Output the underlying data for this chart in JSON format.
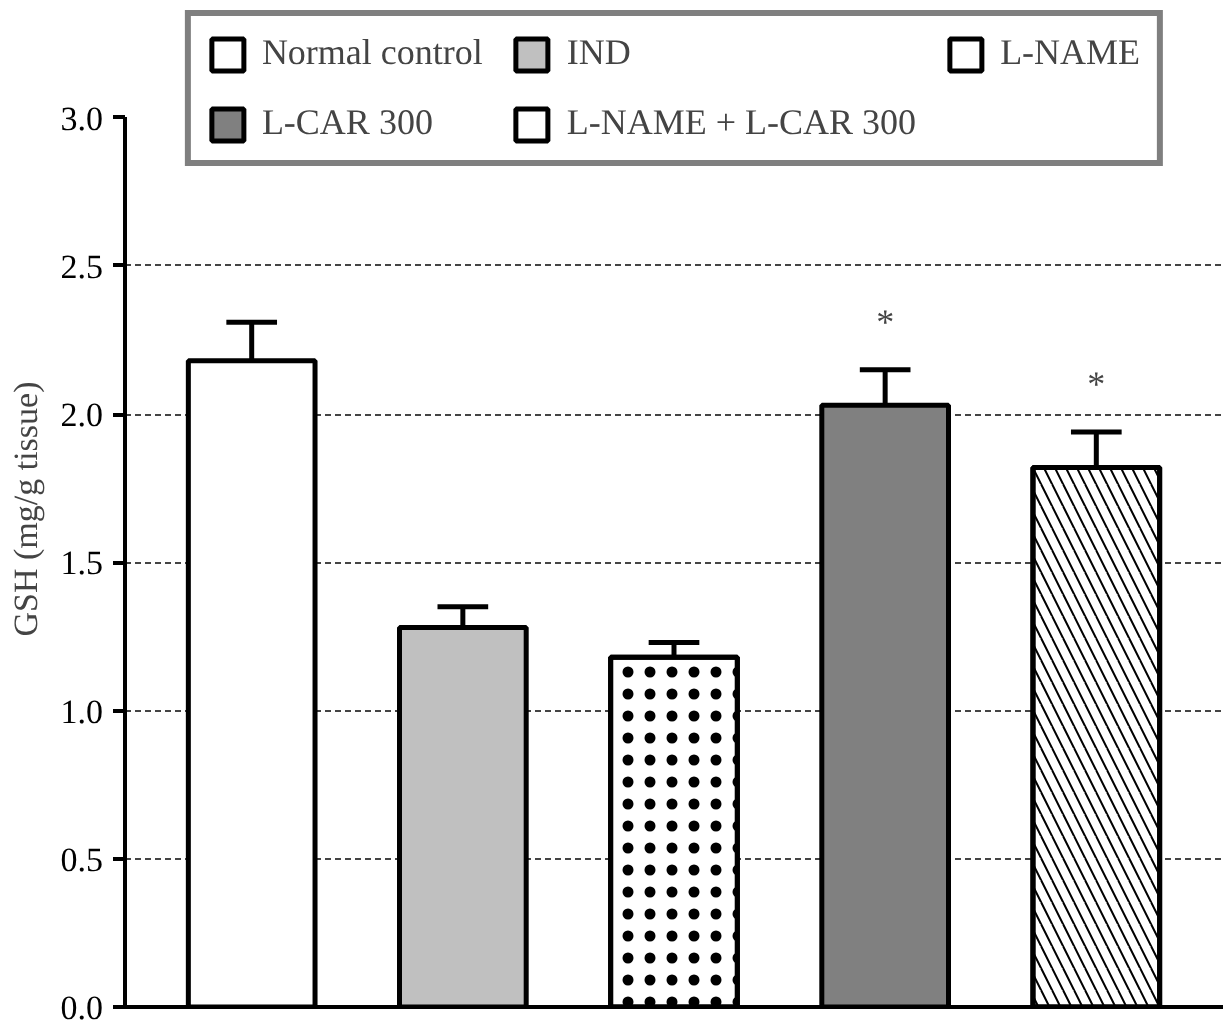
{
  "chart_data": {
    "type": "bar",
    "ylabel": "GSH (mg/g tissue)",
    "categories": [
      null,
      null,
      null,
      null,
      null
    ],
    "series": [
      {
        "name": "Normal control",
        "color": "#ffffff",
        "values": [
          2.18,
          null,
          null,
          null,
          null
        ],
        "errors": [
          0.13,
          null,
          null,
          null,
          null
        ]
      },
      {
        "name": "IND",
        "color": "#c0c0c0",
        "values": [
          null,
          1.28,
          null,
          null,
          null
        ],
        "errors": [
          null,
          0.07,
          null,
          null,
          null
        ]
      },
      {
        "name": "L-NAME",
        "color": "#ffffff",
        "values": [
          null,
          null,
          1.18,
          null,
          null
        ],
        "errors": [
          null,
          null,
          0.05,
          null,
          null
        ]
      },
      {
        "name": "L-CAR 300",
        "color": "#808080",
        "values": [
          null,
          null,
          null,
          2.03,
          null
        ],
        "errors": [
          null,
          null,
          null,
          0.12,
          null
        ]
      },
      {
        "name": "L-NAME + L-CAR 300",
        "color": "#ffffff",
        "values": [
          null,
          null,
          null,
          null,
          1.82
        ],
        "errors": [
          null,
          null,
          null,
          null,
          0.12
        ]
      }
    ],
    "ylim": [
      0,
      3.0
    ],
    "yticks": [
      {
        "value": 0,
        "label": "0.0"
      },
      0.5,
      {
        "value": 1,
        "label": "1.0"
      },
      1.5,
      {
        "value": 2,
        "label": "2.0"
      },
      2.5,
      {
        "value": 3,
        "label": "3.0"
      }
    ],
    "tick_labels": "y",
    "grid": "y",
    "legend": "top",
    "annotations": [
      "*",
      "*"
    ]
  }
}
